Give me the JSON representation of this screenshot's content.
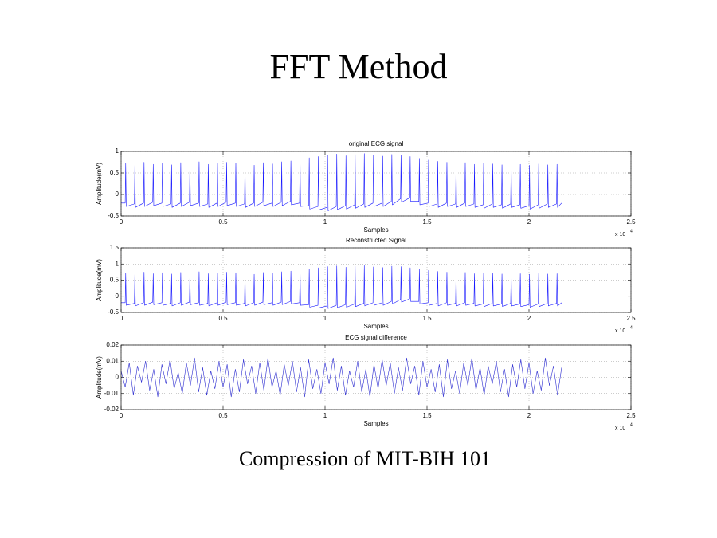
{
  "title": "FFT Method",
  "caption": "Compression of MIT-BIH 101",
  "chart_data": [
    {
      "type": "line",
      "title": "original ECG signal",
      "x_label": "Samples",
      "y_label": "Amplitude(mV)",
      "x_multiplier": "x 10",
      "x_exponent": "4",
      "color": "#1a1aff",
      "grid": true,
      "xlim": [
        0,
        25000
      ],
      "xticks": [
        0,
        {
          "value": 5000,
          "label": "0.5"
        },
        {
          "value": 10000,
          "label": "1"
        },
        {
          "value": 15000,
          "label": "1.5"
        },
        {
          "value": 20000,
          "label": "2"
        },
        {
          "value": 25000,
          "label": "2.5"
        }
      ],
      "ylim": [
        -0.5,
        1
      ],
      "yticks": [
        -0.5,
        0,
        0.5,
        1
      ],
      "x": [
        0,
        200,
        225,
        250,
        650,
        675,
        700,
        1100,
        1125,
        1150,
        1550,
        1575,
        1600,
        2000,
        2025,
        2050,
        2450,
        2475,
        2500,
        2900,
        2925,
        2950,
        3350,
        3375,
        3400,
        3800,
        3825,
        3850,
        4250,
        4275,
        4300,
        4700,
        4725,
        4750,
        5150,
        5175,
        5200,
        5600,
        5625,
        5650,
        6050,
        6075,
        6100,
        6500,
        6525,
        6550,
        6950,
        6975,
        7000,
        7400,
        7425,
        7450,
        7850,
        7875,
        7900,
        8300,
        8325,
        8350,
        8750,
        8775,
        8800,
        9200,
        9225,
        9250,
        9650,
        9675,
        9700,
        10100,
        10125,
        10150,
        10550,
        10575,
        10600,
        11000,
        11025,
        11050,
        11450,
        11475,
        11500,
        11900,
        11925,
        11950,
        12350,
        12375,
        12400,
        12800,
        12825,
        12850,
        13250,
        13275,
        13300,
        13700,
        13725,
        13750,
        14150,
        14175,
        14200,
        14600,
        14625,
        14650,
        15050,
        15075,
        15100,
        15500,
        15525,
        15550,
        15950,
        15975,
        16000,
        16400,
        16425,
        16450,
        16850,
        16875,
        16900,
        17300,
        17325,
        17350,
        17750,
        17775,
        17800,
        18200,
        18225,
        18250,
        18650,
        18675,
        18700,
        19100,
        19125,
        19150,
        19550,
        19575,
        19600,
        20000,
        20025,
        20050,
        20450,
        20475,
        20500,
        20900,
        20925,
        20950,
        21350,
        21375,
        21400,
        21600
      ],
      "values": [
        -0.2,
        -0.2,
        0.72,
        -0.28,
        -0.22,
        0.68,
        -0.3,
        -0.2,
        0.75,
        -0.28,
        -0.18,
        0.7,
        -0.26,
        -0.2,
        0.73,
        -0.28,
        -0.22,
        0.69,
        -0.3,
        -0.2,
        0.74,
        -0.28,
        -0.18,
        0.71,
        -0.26,
        -0.2,
        0.76,
        -0.28,
        -0.22,
        0.7,
        -0.3,
        -0.2,
        0.72,
        -0.28,
        -0.18,
        0.75,
        -0.26,
        -0.2,
        0.73,
        -0.28,
        -0.22,
        0.7,
        -0.3,
        -0.2,
        0.68,
        -0.28,
        -0.18,
        0.74,
        -0.26,
        -0.2,
        0.71,
        -0.28,
        -0.18,
        0.76,
        -0.26,
        -0.16,
        0.78,
        -0.24,
        -0.2,
        0.82,
        -0.28,
        -0.26,
        0.85,
        -0.34,
        -0.28,
        0.88,
        -0.36,
        -0.3,
        0.92,
        -0.38,
        -0.28,
        0.94,
        -0.36,
        -0.26,
        0.9,
        -0.34,
        -0.24,
        0.93,
        -0.32,
        -0.22,
        0.95,
        -0.3,
        -0.2,
        0.91,
        -0.28,
        -0.2,
        0.89,
        -0.28,
        -0.16,
        0.93,
        -0.24,
        -0.1,
        0.92,
        -0.18,
        -0.08,
        0.88,
        -0.16,
        -0.16,
        0.84,
        -0.24,
        -0.2,
        0.8,
        -0.28,
        -0.22,
        0.77,
        -0.3,
        -0.2,
        0.75,
        -0.28,
        -0.22,
        0.72,
        -0.3,
        -0.2,
        0.74,
        -0.28,
        -0.22,
        0.7,
        -0.3,
        -0.24,
        0.73,
        -0.32,
        -0.22,
        0.71,
        -0.3,
        -0.24,
        0.69,
        -0.32,
        -0.22,
        0.72,
        -0.3,
        -0.24,
        0.7,
        -0.32,
        -0.26,
        0.68,
        -0.34,
        -0.24,
        0.71,
        -0.32,
        -0.22,
        0.69,
        -0.3,
        -0.22,
        0.7,
        -0.3,
        -0.2
      ]
    },
    {
      "type": "line",
      "title": "Reconstructed Signal",
      "x_label": "Samples",
      "y_label": "Amplitude(mV)",
      "x_multiplier": "x 10",
      "x_exponent": "4",
      "color": "#1a1aff",
      "grid": true,
      "xlim": [
        0,
        25000
      ],
      "xticks": [
        0,
        {
          "value": 5000,
          "label": "0.5"
        },
        {
          "value": 10000,
          "label": "1"
        },
        {
          "value": 15000,
          "label": "1.5"
        },
        {
          "value": 20000,
          "label": "2"
        },
        {
          "value": 25000,
          "label": "2.5"
        }
      ],
      "ylim": [
        -0.5,
        1.5
      ],
      "yticks": [
        -0.5,
        0,
        0.5,
        1,
        1.5
      ],
      "x": [
        0,
        200,
        225,
        250,
        650,
        675,
        700,
        1100,
        1125,
        1150,
        1550,
        1575,
        1600,
        2000,
        2025,
        2050,
        2450,
        2475,
        2500,
        2900,
        2925,
        2950,
        3350,
        3375,
        3400,
        3800,
        3825,
        3850,
        4250,
        4275,
        4300,
        4700,
        4725,
        4750,
        5150,
        5175,
        5200,
        5600,
        5625,
        5650,
        6050,
        6075,
        6100,
        6500,
        6525,
        6550,
        6950,
        6975,
        7000,
        7400,
        7425,
        7450,
        7850,
        7875,
        7900,
        8300,
        8325,
        8350,
        8750,
        8775,
        8800,
        9200,
        9225,
        9250,
        9650,
        9675,
        9700,
        10100,
        10125,
        10150,
        10550,
        10575,
        10600,
        11000,
        11025,
        11050,
        11450,
        11475,
        11500,
        11900,
        11925,
        11950,
        12350,
        12375,
        12400,
        12800,
        12825,
        12850,
        13250,
        13275,
        13300,
        13700,
        13725,
        13750,
        14150,
        14175,
        14200,
        14600,
        14625,
        14650,
        15050,
        15075,
        15100,
        15500,
        15525,
        15550,
        15950,
        15975,
        16000,
        16400,
        16425,
        16450,
        16850,
        16875,
        16900,
        17300,
        17325,
        17350,
        17750,
        17775,
        17800,
        18200,
        18225,
        18250,
        18650,
        18675,
        18700,
        19100,
        19125,
        19150,
        19550,
        19575,
        19600,
        20000,
        20025,
        20050,
        20450,
        20475,
        20500,
        20900,
        20925,
        20950,
        21350,
        21375,
        21400,
        21600
      ],
      "values": [
        -0.2,
        -0.2,
        0.72,
        -0.28,
        -0.22,
        0.68,
        -0.3,
        -0.2,
        0.75,
        -0.28,
        -0.18,
        0.7,
        -0.26,
        -0.2,
        0.73,
        -0.28,
        -0.22,
        0.69,
        -0.3,
        -0.2,
        0.74,
        -0.28,
        -0.18,
        0.71,
        -0.26,
        -0.2,
        0.76,
        -0.28,
        -0.22,
        0.7,
        -0.3,
        -0.2,
        0.72,
        -0.28,
        -0.18,
        0.75,
        -0.26,
        -0.2,
        0.73,
        -0.28,
        -0.22,
        0.7,
        -0.3,
        -0.2,
        0.68,
        -0.28,
        -0.18,
        0.74,
        -0.26,
        -0.2,
        0.71,
        -0.28,
        -0.18,
        0.76,
        -0.26,
        -0.16,
        0.78,
        -0.24,
        -0.2,
        0.82,
        -0.28,
        -0.26,
        0.85,
        -0.34,
        -0.28,
        0.88,
        -0.36,
        -0.3,
        0.92,
        -0.38,
        -0.28,
        0.94,
        -0.36,
        -0.26,
        0.9,
        -0.34,
        -0.24,
        0.93,
        -0.32,
        -0.22,
        0.95,
        -0.3,
        -0.2,
        0.91,
        -0.28,
        -0.2,
        0.89,
        -0.28,
        -0.16,
        0.93,
        -0.24,
        -0.1,
        0.92,
        -0.18,
        -0.08,
        0.88,
        -0.16,
        -0.16,
        0.84,
        -0.24,
        -0.2,
        0.8,
        -0.28,
        -0.22,
        0.77,
        -0.3,
        -0.2,
        0.75,
        -0.28,
        -0.22,
        0.72,
        -0.3,
        -0.2,
        0.74,
        -0.28,
        -0.22,
        0.7,
        -0.3,
        -0.24,
        0.73,
        -0.32,
        -0.22,
        0.71,
        -0.3,
        -0.24,
        0.69,
        -0.32,
        -0.22,
        0.72,
        -0.3,
        -0.24,
        0.7,
        -0.32,
        -0.26,
        0.68,
        -0.34,
        -0.24,
        0.71,
        -0.32,
        -0.22,
        0.69,
        -0.3,
        -0.22,
        0.7,
        -0.3,
        -0.2
      ]
    },
    {
      "type": "line",
      "title": "ECG signal difference",
      "x_label": "Samples",
      "y_label": "Amplitude(mV)",
      "x_multiplier": "x 10",
      "x_exponent": "4",
      "color": "#2a2ad0",
      "grid": true,
      "xlim": [
        0,
        25000
      ],
      "xticks": [
        0,
        {
          "value": 5000,
          "label": "0.5"
        },
        {
          "value": 10000,
          "label": "1"
        },
        {
          "value": 15000,
          "label": "1.5"
        },
        {
          "value": 20000,
          "label": "2"
        },
        {
          "value": 25000,
          "label": "2.5"
        }
      ],
      "ylim": [
        -0.02,
        0.02
      ],
      "yticks": [
        -0.02,
        -0.01,
        0,
        0.01,
        0.02
      ],
      "x": [
        0,
        200,
        400,
        600,
        800,
        1000,
        1200,
        1400,
        1600,
        1800,
        2000,
        2200,
        2400,
        2600,
        2800,
        3000,
        3200,
        3400,
        3600,
        3800,
        4000,
        4200,
        4400,
        4600,
        4800,
        5000,
        5200,
        5400,
        5600,
        5800,
        6000,
        6200,
        6400,
        6600,
        6800,
        7000,
        7200,
        7400,
        7600,
        7800,
        8000,
        8200,
        8400,
        8600,
        8800,
        9000,
        9200,
        9400,
        9600,
        9800,
        10000,
        10200,
        10400,
        10600,
        10800,
        11000,
        11200,
        11400,
        11600,
        11800,
        12000,
        12200,
        12400,
        12600,
        12800,
        13000,
        13200,
        13400,
        13600,
        13800,
        14000,
        14200,
        14400,
        14600,
        14800,
        15000,
        15200,
        15400,
        15600,
        15800,
        16000,
        16200,
        16400,
        16600,
        16800,
        17000,
        17200,
        17400,
        17600,
        17800,
        18000,
        18200,
        18400,
        18600,
        18800,
        19000,
        19200,
        19400,
        19600,
        19800,
        20000,
        20200,
        20400,
        20600,
        20800,
        21000,
        21200,
        21400,
        21600
      ],
      "values": [
        0.004,
        -0.006,
        0.009,
        -0.011,
        0.007,
        -0.003,
        0.01,
        -0.008,
        0.005,
        -0.012,
        0.008,
        -0.004,
        0.011,
        -0.007,
        0.003,
        -0.01,
        0.009,
        -0.005,
        0.012,
        -0.009,
        0.006,
        -0.011,
        0.004,
        -0.007,
        0.01,
        -0.006,
        0.008,
        -0.012,
        0.005,
        -0.009,
        0.011,
        -0.004,
        0.007,
        -0.01,
        0.009,
        -0.008,
        0.012,
        -0.006,
        0.004,
        -0.011,
        0.008,
        -0.005,
        0.01,
        -0.009,
        0.006,
        -0.012,
        0.011,
        -0.007,
        0.005,
        -0.01,
        0.009,
        -0.004,
        0.012,
        -0.008,
        0.007,
        -0.011,
        0.004,
        -0.006,
        0.01,
        -0.009,
        0.005,
        -0.012,
        0.008,
        -0.007,
        0.011,
        -0.005,
        0.009,
        -0.01,
        0.006,
        -0.008,
        0.012,
        -0.004,
        0.007,
        -0.011,
        0.01,
        -0.006,
        0.005,
        -0.009,
        0.008,
        -0.012,
        0.011,
        -0.007,
        0.004,
        -0.01,
        0.009,
        -0.005,
        0.012,
        -0.008,
        0.006,
        -0.011,
        0.007,
        -0.004,
        0.01,
        -0.009,
        0.005,
        -0.012,
        0.008,
        -0.006,
        0.011,
        -0.007,
        0.009,
        -0.01,
        0.004,
        -0.008,
        0.012,
        -0.005,
        0.007,
        -0.011,
        0.006
      ]
    }
  ]
}
